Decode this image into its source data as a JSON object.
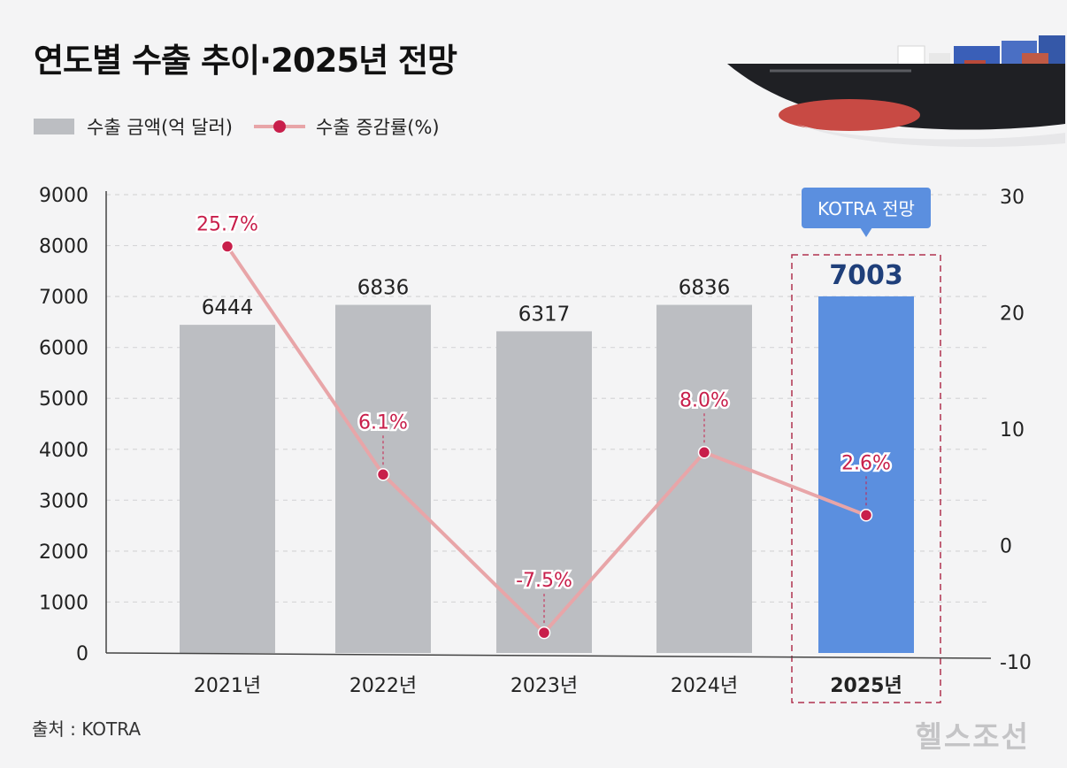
{
  "title": "연도별 수출 추이·2025년 전망",
  "legend": {
    "bar_label": "수출 금액(억 달러)",
    "line_label": "수출 증감률(%)"
  },
  "source": "출처 : KOTRA",
  "logo_text": "헬스조선",
  "colors": {
    "bar": "#bcbec2",
    "bar_highlight": "#5b8fdf",
    "line": "#e8a5a8",
    "point": "#c81f4b",
    "highlight_border": "#b0324e",
    "callout_bg": "#5b8fdf"
  },
  "chart_data": {
    "type": "bar",
    "categories": [
      "2021년",
      "2022년",
      "2023년",
      "2024년",
      "2025년"
    ],
    "series": [
      {
        "name": "수출 금액(억 달러)",
        "type": "bar",
        "axis": "left",
        "values": [
          6444,
          6836,
          6317,
          6836,
          7003
        ]
      },
      {
        "name": "수출 증감률(%)",
        "type": "line",
        "axis": "right",
        "values": [
          25.7,
          6.1,
          -7.5,
          8.0,
          2.6
        ]
      }
    ],
    "bar_labels": [
      "6444",
      "6836",
      "6317",
      "6836",
      "7003"
    ],
    "line_labels": [
      "25.7%",
      "6.1%",
      "-7.5%",
      "8.0%",
      "2.6%"
    ],
    "y_left": {
      "range": [
        0,
        9000
      ],
      "ticks": [
        "9000",
        "8000",
        "7000",
        "6000",
        "5000",
        "4000",
        "3000",
        "2000",
        "1000",
        "0"
      ]
    },
    "y_right": {
      "range": [
        -10,
        30
      ],
      "ticks": [
        "30",
        "20",
        "10",
        "0",
        "-10"
      ]
    },
    "grid": true,
    "highlight": {
      "category": "2025년",
      "callout": "KOTRA 전망"
    }
  }
}
